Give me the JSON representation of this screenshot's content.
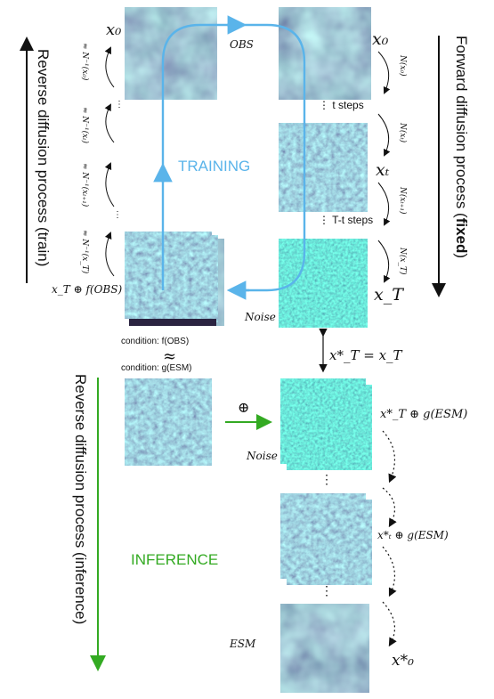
{
  "left_vertical_label": "Reverse diffusion process (train)",
  "right_vertical_label_prefix": "Forward diffusion process (",
  "right_vertical_label_bold": "fixed",
  "right_vertical_label_suffix": ")",
  "inference_vertical_label": "Reverse diffusion process (inference)",
  "training_label": "TRAINING",
  "inference_label": "INFERENCE",
  "obs_label": "OBS",
  "noise_label_top": "Noise",
  "noise_label_mid": "Noise",
  "esm_label": "ESM",
  "x0_left": "x₀",
  "x0_right": "x₀",
  "xt_right": "xₜ",
  "xT_right": "x_T",
  "xT_cond": "x_T ⊕ f(OBS)",
  "t_steps": "t steps",
  "Tt_steps": "T-t steps",
  "n_x0": "N(x₀)",
  "n_xt": "N(xₜ)",
  "n_xt1": "N(xₜ₊₁)",
  "n_xT": "N(x_T)",
  "ninv_x0": "≈ N⁻¹(x₀)",
  "ninv_xt": "≈ N⁻¹(xₜ)",
  "ninv_xt1": "≈ N⁻¹(xₜ₊₁)",
  "ninv_xT": "≈ N⁻¹(x_T)",
  "cond_f": "condition: f(OBS)",
  "approx_sym": "≈",
  "cond_g": "condition: g(ESM)",
  "xT_star_eq": "x*_T = x_T",
  "oplus": "⊕",
  "xT_star_g": "x*_T ⊕ g(ESM)",
  "xt_star_g": "x*ₜ ⊕ g(ESM)",
  "x0_star": "x*₀",
  "dots": "⋮",
  "colors": {
    "training": "#5ab4ea",
    "inference": "#33aa22",
    "ink": "#111111"
  }
}
